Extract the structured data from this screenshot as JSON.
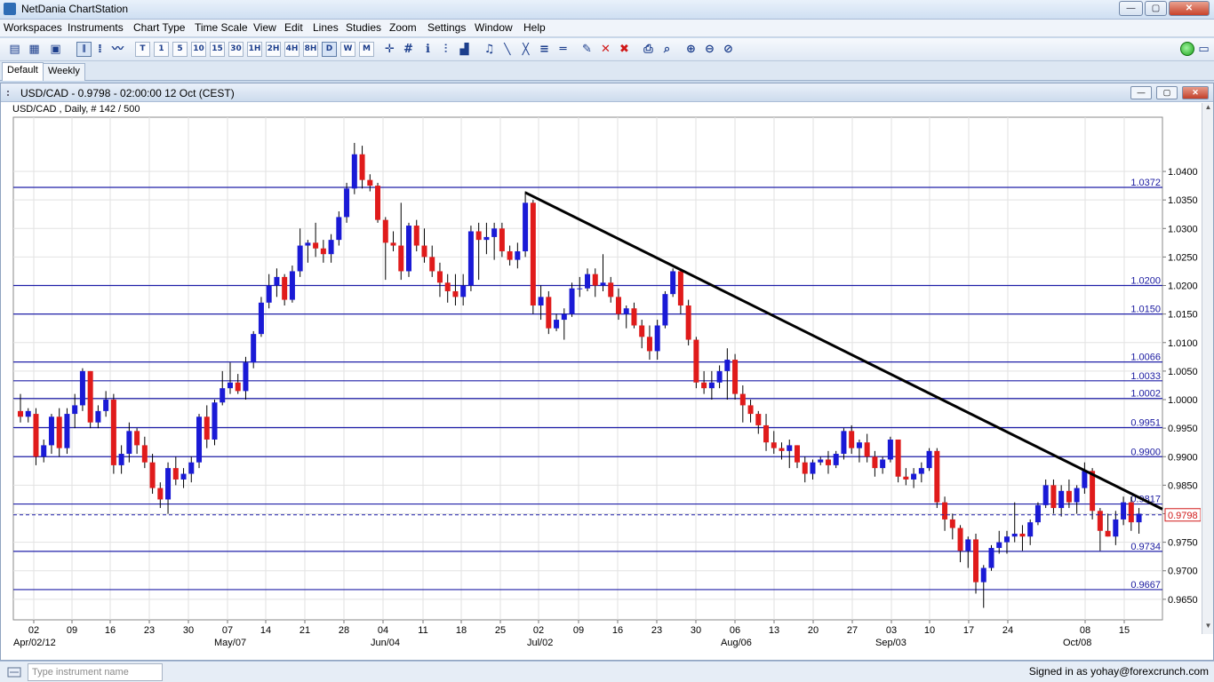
{
  "window": {
    "title": "NetDania ChartStation",
    "buttons": {
      "minimize": "—",
      "maximize": "▢",
      "close": "✕"
    }
  },
  "menu": [
    "Workspaces",
    "Instruments",
    "Chart Type",
    "Time Scale",
    "View",
    "Edit",
    "Lines",
    "Studies",
    "Zoom",
    "Settings",
    "Window",
    "Help"
  ],
  "toolbar": {
    "timescales": [
      "T",
      "1",
      "5",
      "10",
      "15",
      "30",
      "1H",
      "2H",
      "4H",
      "8H",
      "D",
      "W",
      "M"
    ],
    "active_timescale": "D"
  },
  "tabs": [
    {
      "label": "Default",
      "active": true
    },
    {
      "label": "Weekly",
      "active": false
    }
  ],
  "chart_window": {
    "title": "USD/CAD - 0.9798 - 02:00:00  12 Oct (CEST)",
    "subtitle": "USD/CAD , Daily, # 142 / 500"
  },
  "chart_data": {
    "type": "candlestick",
    "instrument": "USD/CAD",
    "period": "Daily",
    "current_price": "0.9798",
    "ylim": [
      0.9614,
      1.0495
    ],
    "y_ticks": [
      "0.9650",
      "0.9700",
      "0.9750",
      "0.9800",
      "0.9850",
      "0.9900",
      "0.9950",
      "1.0000",
      "1.0050",
      "1.0100",
      "1.0150",
      "1.0200",
      "1.0250",
      "1.0300",
      "1.0350",
      "1.0400"
    ],
    "x_tick_labels": [
      "02",
      "09",
      "16",
      "23",
      "30",
      "07",
      "14",
      "21",
      "28",
      "04",
      "11",
      "18",
      "25",
      "02",
      "09",
      "16",
      "23",
      "30",
      "06",
      "13",
      "20",
      "27",
      "03",
      "10",
      "17",
      "24",
      "08",
      "15"
    ],
    "month_labels": [
      "Apr/02/12",
      "May/07",
      "Jun/04",
      "Jul/02",
      "Aug/06",
      "Sep/03",
      "Oct/08"
    ],
    "horizontal_levels": [
      "1.0372",
      "1.0200",
      "1.0150",
      "1.0066",
      "1.0033",
      "1.0002",
      "0.9951",
      "0.9900",
      "0.9817",
      "0.9734",
      "0.9667"
    ],
    "trendline": {
      "from": {
        "date": "Jun/29",
        "price": 1.0363
      },
      "to": {
        "date": "Oct/15",
        "price": 0.9808
      }
    },
    "up_color": "#1a1ad6",
    "down_color": "#e01b1b",
    "candles": [
      [
        0.998,
        1.001,
        0.996,
        0.997
      ],
      [
        0.997,
        0.9985,
        0.996,
        0.998
      ],
      [
        0.9975,
        0.9985,
        0.9885,
        0.99
      ],
      [
        0.99,
        0.993,
        0.989,
        0.992
      ],
      [
        0.992,
        0.9975,
        0.9905,
        0.997
      ],
      [
        0.997,
        0.9985,
        0.99,
        0.9915
      ],
      [
        0.9915,
        0.9985,
        0.9905,
        0.9975
      ],
      [
        0.9975,
        1.001,
        0.995,
        0.999
      ],
      [
        0.999,
        1.0055,
        0.998,
        1.005
      ],
      [
        1.005,
        1.005,
        0.995,
        0.996
      ],
      [
        0.996,
        0.999,
        0.995,
        0.998
      ],
      [
        0.998,
        1.0015,
        0.997,
        1.0
      ],
      [
        1.0,
        1.001,
        0.987,
        0.9885
      ],
      [
        0.9885,
        0.992,
        0.987,
        0.9905
      ],
      [
        0.9905,
        0.996,
        0.989,
        0.9945
      ],
      [
        0.9945,
        0.995,
        0.9905,
        0.992
      ],
      [
        0.992,
        0.9935,
        0.988,
        0.989
      ],
      [
        0.989,
        0.9905,
        0.9835,
        0.9845
      ],
      [
        0.9845,
        0.9855,
        0.981,
        0.9825
      ],
      [
        0.9825,
        0.989,
        0.98,
        0.988
      ],
      [
        0.988,
        0.99,
        0.985,
        0.986
      ],
      [
        0.986,
        0.988,
        0.9845,
        0.987
      ],
      [
        0.987,
        0.99,
        0.9855,
        0.989
      ],
      [
        0.989,
        0.9975,
        0.988,
        0.997
      ],
      [
        0.997,
        0.999,
        0.9915,
        0.993
      ],
      [
        0.993,
        1.0,
        0.992,
        0.9995
      ],
      [
        0.9995,
        1.005,
        0.999,
        1.002
      ],
      [
        1.002,
        1.0065,
        1.001,
        1.003
      ],
      [
        1.003,
        1.0045,
        1.001,
        1.0015
      ],
      [
        1.0015,
        1.0075,
        1.0,
        1.0065
      ],
      [
        1.0065,
        1.012,
        1.0055,
        1.0115
      ],
      [
        1.0115,
        1.018,
        1.011,
        1.017
      ],
      [
        1.017,
        1.022,
        1.016,
        1.02
      ],
      [
        1.02,
        1.023,
        1.018,
        1.0215
      ],
      [
        1.0215,
        1.022,
        1.0165,
        1.0175
      ],
      [
        1.0175,
        1.0235,
        1.017,
        1.0225
      ],
      [
        1.0225,
        1.03,
        1.0215,
        1.027
      ],
      [
        1.027,
        1.028,
        1.024,
        1.0275
      ],
      [
        1.0275,
        1.031,
        1.025,
        1.0265
      ],
      [
        1.0265,
        1.028,
        1.024,
        1.0255
      ],
      [
        1.0255,
        1.029,
        1.024,
        1.028
      ],
      [
        1.028,
        1.033,
        1.027,
        1.032
      ],
      [
        1.032,
        1.038,
        1.031,
        1.037
      ],
      [
        1.037,
        1.045,
        1.036,
        1.043
      ],
      [
        1.043,
        1.0445,
        1.037,
        1.0385
      ],
      [
        1.0385,
        1.0395,
        1.0365,
        1.0375
      ],
      [
        1.0375,
        1.038,
        1.031,
        1.0315
      ],
      [
        1.0315,
        1.032,
        1.021,
        1.0275
      ],
      [
        1.0275,
        1.0295,
        1.026,
        1.027
      ],
      [
        1.027,
        1.0345,
        1.021,
        1.0225
      ],
      [
        1.0225,
        1.031,
        1.0215,
        1.0305
      ],
      [
        1.0305,
        1.0315,
        1.026,
        1.027
      ],
      [
        1.027,
        1.03,
        1.024,
        1.025
      ],
      [
        1.025,
        1.027,
        1.0215,
        1.0225
      ],
      [
        1.0225,
        1.024,
        1.018,
        1.0205
      ],
      [
        1.0205,
        1.022,
        1.017,
        1.019
      ],
      [
        1.019,
        1.022,
        1.0165,
        1.018
      ],
      [
        1.018,
        1.022,
        1.0165,
        1.02
      ],
      [
        1.02,
        1.0305,
        1.019,
        1.0295
      ],
      [
        1.0295,
        1.031,
        1.021,
        1.028
      ],
      [
        1.028,
        1.031,
        1.0255,
        1.0285
      ],
      [
        1.0285,
        1.031,
        1.0245,
        1.03
      ],
      [
        1.03,
        1.031,
        1.025,
        1.026
      ],
      [
        1.026,
        1.027,
        1.0235,
        1.0245
      ],
      [
        1.0245,
        1.0275,
        1.023,
        1.026
      ],
      [
        1.026,
        1.0365,
        1.025,
        1.0345
      ],
      [
        1.0345,
        1.035,
        1.015,
        1.0165
      ],
      [
        1.0165,
        1.02,
        1.014,
        1.018
      ],
      [
        1.018,
        1.019,
        1.0115,
        1.0125
      ],
      [
        1.0125,
        1.015,
        1.012,
        1.014
      ],
      [
        1.014,
        1.016,
        1.0105,
        1.015
      ],
      [
        1.015,
        1.0205,
        1.0145,
        1.0195
      ],
      [
        1.0195,
        1.0215,
        1.018,
        1.0195
      ],
      [
        1.0195,
        1.023,
        1.019,
        1.022
      ],
      [
        1.022,
        1.023,
        1.018,
        1.02
      ],
      [
        1.02,
        1.0255,
        1.019,
        1.0205
      ],
      [
        1.0205,
        1.0215,
        1.017,
        1.018
      ],
      [
        1.018,
        1.0195,
        1.014,
        1.015
      ],
      [
        1.015,
        1.0165,
        1.0125,
        1.016
      ],
      [
        1.016,
        1.017,
        1.0125,
        1.013
      ],
      [
        1.013,
        1.014,
        1.009,
        1.011
      ],
      [
        1.011,
        1.013,
        1.007,
        1.0085
      ],
      [
        1.0085,
        1.014,
        1.007,
        1.013
      ],
      [
        1.013,
        1.019,
        1.0125,
        1.0185
      ],
      [
        1.0185,
        1.023,
        1.018,
        1.0225
      ],
      [
        1.0225,
        1.023,
        1.015,
        1.0165
      ],
      [
        1.0165,
        1.0175,
        1.0095,
        1.0105
      ],
      [
        1.0105,
        1.011,
        1.002,
        1.003
      ],
      [
        1.003,
        1.005,
        1.001,
        1.002
      ],
      [
        1.002,
        1.005,
        1.0,
        1.003
      ],
      [
        1.003,
        1.006,
        1.002,
        1.005
      ],
      [
        1.005,
        1.009,
        1.0,
        1.007
      ],
      [
        1.007,
        1.008,
        1.0,
        1.001
      ],
      [
        1.001,
        1.0025,
        0.996,
        0.999
      ],
      [
        0.999,
        1.0,
        0.996,
        0.9975
      ],
      [
        0.9975,
        0.998,
        0.994,
        0.9955
      ],
      [
        0.9955,
        0.9975,
        0.991,
        0.9925
      ],
      [
        0.9925,
        0.9945,
        0.9905,
        0.9915
      ],
      [
        0.9915,
        0.9925,
        0.9895,
        0.991
      ],
      [
        0.991,
        0.993,
        0.988,
        0.992
      ],
      [
        0.992,
        0.992,
        0.988,
        0.989
      ],
      [
        0.989,
        0.99,
        0.9855,
        0.987
      ],
      [
        0.987,
        0.9895,
        0.986,
        0.989
      ],
      [
        0.989,
        0.99,
        0.9885,
        0.9895
      ],
      [
        0.9895,
        0.991,
        0.987,
        0.9885
      ],
      [
        0.9885,
        0.991,
        0.988,
        0.9905
      ],
      [
        0.9905,
        0.995,
        0.9895,
        0.9945
      ],
      [
        0.9945,
        0.9955,
        0.9905,
        0.9915
      ],
      [
        0.9915,
        0.993,
        0.989,
        0.9925
      ],
      [
        0.9925,
        0.994,
        0.989,
        0.99
      ],
      [
        0.99,
        0.991,
        0.9865,
        0.988
      ],
      [
        0.988,
        0.99,
        0.987,
        0.9895
      ],
      [
        0.9895,
        0.9935,
        0.989,
        0.993
      ],
      [
        0.993,
        0.993,
        0.9855,
        0.9865
      ],
      [
        0.9865,
        0.988,
        0.985,
        0.986
      ],
      [
        0.986,
        0.988,
        0.9845,
        0.987
      ],
      [
        0.987,
        0.989,
        0.9855,
        0.988
      ],
      [
        0.988,
        0.9915,
        0.9875,
        0.991
      ],
      [
        0.991,
        0.9915,
        0.981,
        0.982
      ],
      [
        0.982,
        0.983,
        0.977,
        0.979
      ],
      [
        0.979,
        0.98,
        0.9755,
        0.9775
      ],
      [
        0.9775,
        0.978,
        0.9715,
        0.9735
      ],
      [
        0.9735,
        0.976,
        0.9705,
        0.9755
      ],
      [
        0.9755,
        0.9765,
        0.966,
        0.968
      ],
      [
        0.968,
        0.971,
        0.9635,
        0.9705
      ],
      [
        0.9705,
        0.9745,
        0.97,
        0.974
      ],
      [
        0.974,
        0.977,
        0.973,
        0.975
      ],
      [
        0.975,
        0.977,
        0.973,
        0.976
      ],
      [
        0.976,
        0.982,
        0.975,
        0.9765
      ],
      [
        0.9765,
        0.978,
        0.9735,
        0.976
      ],
      [
        0.976,
        0.979,
        0.9745,
        0.9785
      ],
      [
        0.9785,
        0.982,
        0.978,
        0.9815
      ],
      [
        0.9815,
        0.986,
        0.981,
        0.985
      ],
      [
        0.985,
        0.986,
        0.98,
        0.981
      ],
      [
        0.981,
        0.985,
        0.9795,
        0.984
      ],
      [
        0.984,
        0.986,
        0.981,
        0.982
      ],
      [
        0.982,
        0.985,
        0.98,
        0.9845
      ],
      [
        0.9845,
        0.989,
        0.9835,
        0.9875
      ],
      [
        0.9875,
        0.988,
        0.979,
        0.9805
      ],
      [
        0.9805,
        0.981,
        0.9735,
        0.977
      ],
      [
        0.977,
        0.98,
        0.976,
        0.976
      ],
      [
        0.976,
        0.9805,
        0.9745,
        0.979
      ],
      [
        0.979,
        0.983,
        0.978,
        0.982
      ],
      [
        0.982,
        0.983,
        0.977,
        0.9785
      ],
      [
        0.9785,
        0.981,
        0.9765,
        0.98
      ]
    ]
  },
  "status_bar": {
    "instrument_placeholder": "Type instrument name",
    "signed_in": "Signed in as yohay@forexcrunch.com"
  }
}
